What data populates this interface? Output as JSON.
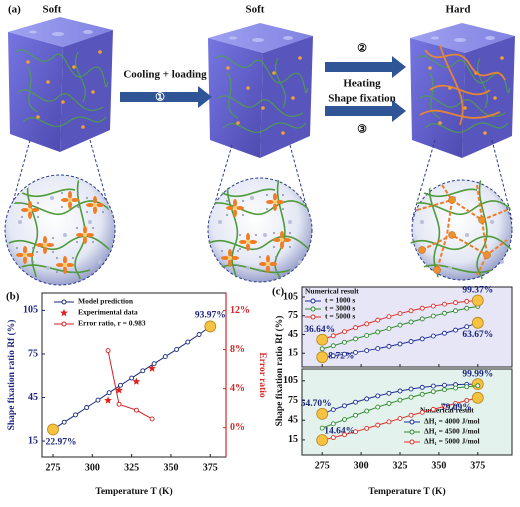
{
  "figure": {
    "panel_label": "(a)",
    "states": [
      "Soft",
      "Soft",
      "Hard"
    ],
    "step1_text": "Cooling + loading",
    "step1_num": "①",
    "step2_num": "②",
    "step2_text": "Heating",
    "step3_text": "Shape fixation",
    "step3_num": "③"
  },
  "chart_data": [
    {
      "type": "line",
      "panel_label": "(b)",
      "xlabel": "Temperature T (K)",
      "ylabel": "Shape fixation ratio Rf (%)",
      "y2label": "Error ratio",
      "xlim": [
        268,
        385
      ],
      "xticks": [
        275,
        300,
        325,
        350,
        375
      ],
      "ylim": [
        4,
        117
      ],
      "yticks": [
        15,
        45,
        75,
        105
      ],
      "ycolor": "#1a237e",
      "y2lim": [
        -3,
        13.8
      ],
      "y2ticks": [
        {
          "value": 0,
          "label": "0%"
        },
        {
          "value": 4,
          "label": "4%"
        },
        {
          "value": 8,
          "label": "8%"
        },
        {
          "value": 12,
          "label": "12%"
        }
      ],
      "y2color": "#d62728",
      "background": "#ffffff",
      "series": [
        {
          "name": "Model prediction",
          "color": "#1b2a7a",
          "marker": "circle",
          "linestyle": "solid",
          "x": [
            275,
            282.1,
            289.3,
            296.4,
            303.6,
            310.7,
            317.9,
            325,
            332.1,
            339.3,
            346.4,
            353.6,
            360.7,
            367.9,
            375
          ],
          "values": [
            22.97,
            28,
            33,
            38.1,
            43.2,
            48.3,
            53.4,
            58.4,
            63.4,
            68.3,
            73.2,
            78.1,
            83.2,
            88.4,
            93.97
          ],
          "value_labels": [
            "22.97%",
            null,
            null,
            null,
            null,
            null,
            null,
            null,
            null,
            null,
            null,
            null,
            null,
            null,
            "93.97%"
          ]
        },
        {
          "name": "Experimental data",
          "color": "#e02020",
          "marker": "star",
          "linestyle": "none",
          "x": [
            310,
            317,
            328,
            338
          ],
          "values": [
            43,
            50,
            56,
            65
          ]
        },
        {
          "name": "Error ratio, r = 0.983",
          "color": "#d42020",
          "marker": "circle",
          "linestyle": "solid",
          "axis": "y2",
          "x": [
            310,
            317,
            328,
            338
          ],
          "values": [
            7.9,
            2.4,
            1.8,
            0.9
          ]
        }
      ]
    },
    {
      "type": "line",
      "panel_label": "(c)",
      "ylabel": "Shape fixation ratio Rf (%)",
      "legend_title": "Numerical result",
      "xlim": [
        262,
        397
      ],
      "xticks": [
        275,
        300,
        325,
        350,
        375
      ],
      "ylim": [
        -7,
        121
      ],
      "yticks": [
        15,
        45,
        75,
        105
      ],
      "background": "#e6e6f7",
      "x": [
        275,
        282.1,
        289.3,
        296.4,
        303.6,
        310.7,
        317.9,
        325,
        332.1,
        339.3,
        346.4,
        353.6,
        360.7,
        367.9,
        375
      ],
      "series": [
        {
          "name": "t = 1000 s",
          "color": "#1f2f9a",
          "marker": "circle",
          "linestyle": "solid",
          "values": [
            8.72,
            11,
            13.5,
            16.3,
            19.3,
            22.5,
            26,
            29.8,
            33.8,
            38,
            42.5,
            47,
            52,
            57.5,
            63.67
          ],
          "value_labels": [
            "8.72%",
            null,
            null,
            null,
            null,
            null,
            null,
            null,
            null,
            null,
            null,
            null,
            null,
            null,
            "63.67%"
          ]
        },
        {
          "name": "t = 3000 s",
          "color": "#2e8b2e",
          "marker": "circle",
          "linestyle": "solid",
          "values": [
            22,
            27,
            32.5,
            38,
            43.5,
            49,
            54.5,
            60,
            65,
            70,
            74.5,
            79,
            83,
            87,
            90
          ]
        },
        {
          "name": "t = 5000 s",
          "color": "#e0302a",
          "marker": "circle",
          "linestyle": "solid",
          "values": [
            36.64,
            43,
            49.5,
            56,
            62,
            68,
            73.5,
            78.5,
            83,
            87,
            90.5,
            93.5,
            96,
            98,
            99.37
          ],
          "value_labels": [
            "36.64%",
            null,
            null,
            null,
            null,
            null,
            null,
            null,
            null,
            null,
            null,
            null,
            null,
            null,
            "99.37%"
          ]
        }
      ]
    },
    {
      "type": "line",
      "xlabel": "Temperature T (K)",
      "legend_title": "Numerical result",
      "xlim": [
        262,
        397
      ],
      "xticks": [
        275,
        300,
        325,
        350,
        375
      ],
      "ylim": [
        -8,
        123
      ],
      "yticks": [
        15,
        45,
        75,
        105
      ],
      "background": "#e3f2ec",
      "x": [
        275,
        282.1,
        289.3,
        296.4,
        303.6,
        310.7,
        317.9,
        325,
        332.1,
        339.3,
        346.4,
        353.6,
        360.7,
        367.9,
        375
      ],
      "series": [
        {
          "name": "ΔH₁ = 4000 J/mol",
          "color": "#1f2f9a",
          "marker": "circle",
          "linestyle": "solid",
          "values": [
            54.7,
            61,
            67,
            72.5,
            77.5,
            82,
            86,
            89.5,
            92.5,
            95,
            97,
            98.3,
            99.2,
            99.7,
            99.99
          ],
          "value_labels": [
            "54.70%",
            null,
            null,
            null,
            null,
            null,
            null,
            null,
            null,
            null,
            null,
            null,
            null,
            null,
            "99.99%"
          ]
        },
        {
          "name": "ΔH₁ = 4500 J/mol",
          "color": "#2e8b2e",
          "marker": "circle",
          "linestyle": "solid",
          "values": [
            33,
            39.5,
            46,
            52.5,
            59,
            65,
            70.5,
            75.5,
            80,
            84.5,
            88.5,
            91.5,
            94,
            96,
            97.5
          ]
        },
        {
          "name": "ΔH₁ = 5000 J/mol",
          "color": "#e0302a",
          "marker": "circle",
          "linestyle": "solid",
          "values": [
            14.64,
            18.5,
            23,
            27.5,
            32.5,
            37.5,
            42.5,
            47.5,
            52.5,
            57,
            61.5,
            66,
            70.5,
            75,
            79.09
          ],
          "value_labels": [
            "14.64%",
            null,
            null,
            null,
            null,
            null,
            null,
            null,
            null,
            null,
            null,
            null,
            null,
            null,
            "79.09%"
          ]
        }
      ]
    }
  ]
}
